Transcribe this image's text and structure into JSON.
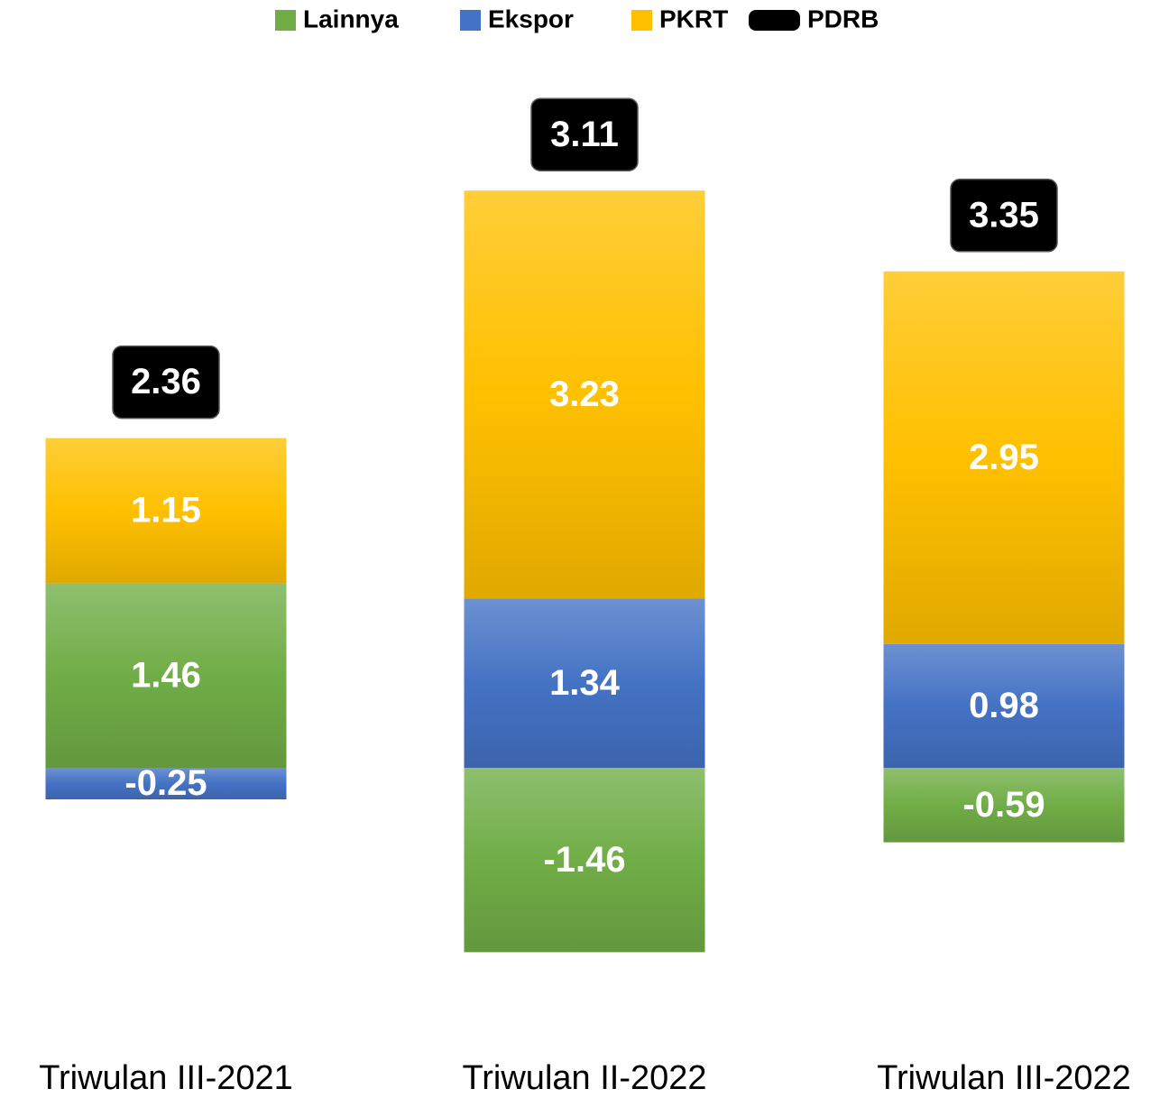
{
  "chart_data": {
    "type": "bar",
    "stacked": true,
    "categories": [
      "Triwulan III-2021",
      "Triwulan II-2022",
      "Triwulan III-2022"
    ],
    "series": [
      {
        "name": "Lainnya",
        "color": "#70ad47",
        "values": [
          1.46,
          -1.46,
          -0.59
        ]
      },
      {
        "name": "Ekspor",
        "color": "#4472c4",
        "values": [
          -0.25,
          1.34,
          0.98
        ]
      },
      {
        "name": "PKRT",
        "color": "#ffc000",
        "values": [
          1.15,
          3.23,
          2.95
        ]
      },
      {
        "name": "PDRB",
        "color": "#000000",
        "values": [
          2.36,
          3.11,
          3.35
        ]
      }
    ],
    "legend": "top"
  }
}
